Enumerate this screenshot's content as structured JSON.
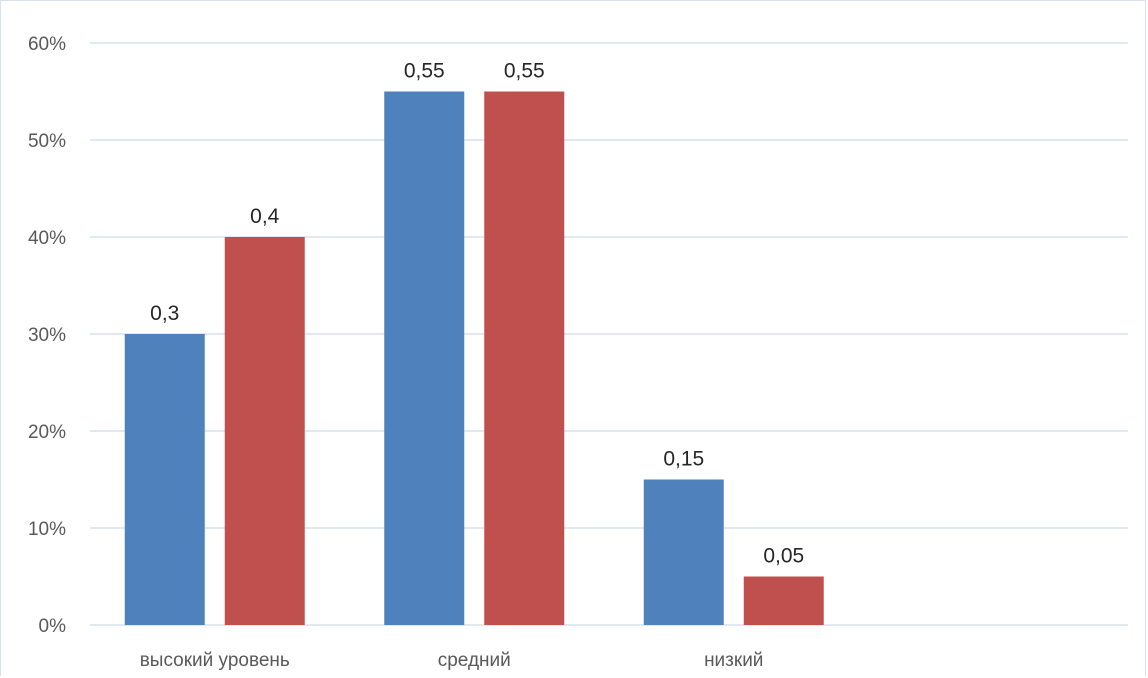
{
  "chart_data": {
    "type": "bar",
    "categories": [
      "высокий уровень",
      "средний",
      "низкий"
    ],
    "series": [
      {
        "values": [
          0.3,
          0.55,
          0.15
        ],
        "labels": [
          "0,3",
          "0,55",
          "0,15"
        ],
        "color": "#4f81bd"
      },
      {
        "values": [
          0.4,
          0.55,
          0.05
        ],
        "labels": [
          "0,4",
          "0,55",
          "0,05"
        ],
        "color": "#c0504d"
      }
    ],
    "yticks": [
      0,
      0.1,
      0.2,
      0.3,
      0.4,
      0.5,
      0.6
    ],
    "ytick_labels": [
      "0%",
      "10%",
      "20%",
      "30%",
      "40%",
      "50%",
      "60%"
    ],
    "ylim": [
      0,
      0.6
    ],
    "grid": true,
    "gridline_color": "#d9e1ec",
    "legend": "none",
    "title": "",
    "xlabel": "",
    "ylabel": ""
  }
}
